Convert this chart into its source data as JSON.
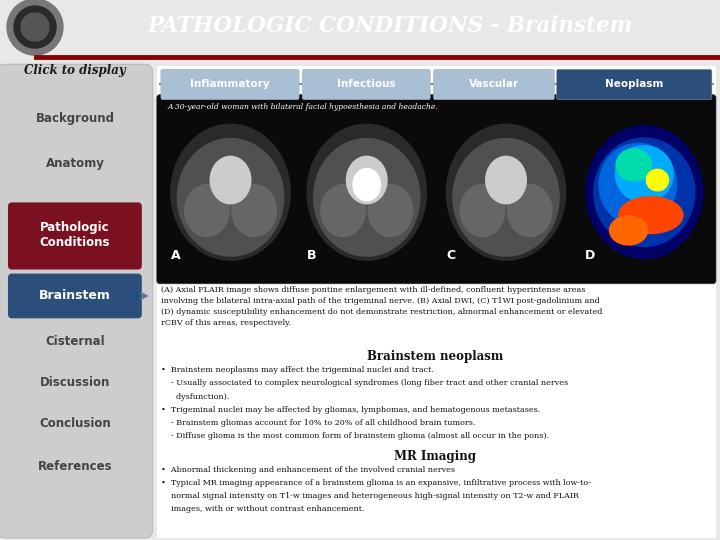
{
  "title": "PATHOLOGIC CONDITIONS - Brainstem",
  "title_color": "#FFFFFF",
  "header_bg": "#1C1C1C",
  "header_line_color": "#8B0000",
  "sidebar_bg": "#D0D0D0",
  "sidebar_active_pathologic": "#7B1020",
  "sidebar_active_brainstem": "#2B4F7A",
  "tab_labels": [
    "Inflammatory",
    "Infectious",
    "Vascular",
    "Neoplasm"
  ],
  "tab_colors_light": "#A8BFD4",
  "tab_color_active": "#2B4F7A",
  "case_text": "A 30-year-old woman with bilateral facial hypoesthesia and headache.",
  "image_labels": [
    "A",
    "B",
    "C",
    "D"
  ],
  "caption_text": "(A) Axial FLAIR image shows diffuse pontine enlargement with ill-defined, confluent hyperintense areas\ninvolving the bilateral intra-axial path of the trigeminal nerve. (B) Axial DWI, (C) T1WI post-gadolinium and\n(D) dynamic susceptibility enhancement do not demonstrate restriction, abnormal enhancement or elevated\nrCBV of this areas, respectively.",
  "neoplasm_title": "Brainstem neoplasm",
  "bullet1_lines": [
    "•  Brainstem neoplasms may affect the trigeminal nuclei and tract.",
    "    - Usually associated to complex neurological syndromes (long fiber tract and other cranial nerves",
    "      dysfunction).",
    "•  Trigeminal nuclei may be affected by gliomas, lymphomas, and hematogenous metastases.",
    "    - Brainstem gliomas account for 10% to 20% of all childhood brain tumors.",
    "    - Diffuse glioma is the most common form of brainstem glioma (almost all occur in the pons)."
  ],
  "mr_imaging_title": "MR Imaging",
  "bullet2_lines": [
    "•  Abnormal thickening and enhancement of the involved cranial nerves",
    "•  Typical MR imaging appearance of a brainstem glioma is an expansive, infiltrative process with low-to-",
    "    normal signal intensity on T1-w images and heterogeneous high-signal intensity on T2-w and FLAIR",
    "    images, with or without contrast enhancement."
  ],
  "sidebar_items_top": [
    "Background",
    "Anatomy"
  ],
  "sidebar_items_bottom": [
    "Cisternal",
    "Discussion",
    "Conclusion",
    "References"
  ],
  "main_bg": "#E8E8E8"
}
